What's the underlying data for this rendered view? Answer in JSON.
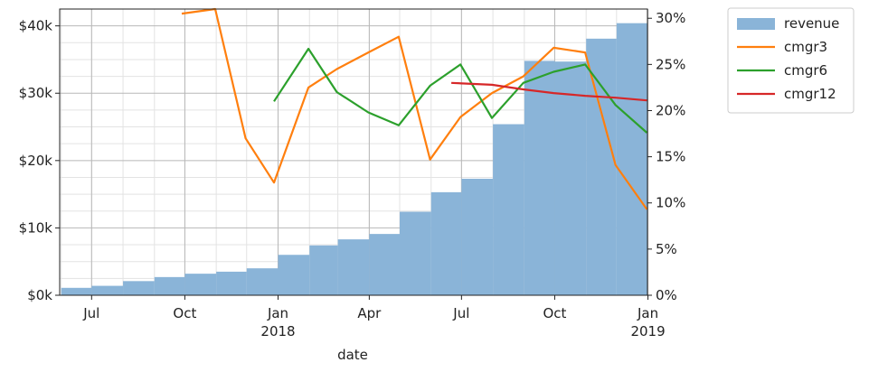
{
  "chart_data": {
    "type": "bar",
    "xlabel": "date",
    "x_ticks": [
      {
        "date": "2017-07-01",
        "label": "Jul",
        "sub": ""
      },
      {
        "date": "2017-10-01",
        "label": "Oct",
        "sub": ""
      },
      {
        "date": "2018-01-01",
        "label": "Jan",
        "sub": "2018"
      },
      {
        "date": "2018-04-01",
        "label": "Apr",
        "sub": ""
      },
      {
        "date": "2018-07-01",
        "label": "Jul",
        "sub": ""
      },
      {
        "date": "2018-10-01",
        "label": "Oct",
        "sub": ""
      },
      {
        "date": "2019-01-01",
        "label": "Jan",
        "sub": "2019"
      }
    ],
    "x_range": [
      "2017-05-31",
      "2018-12-31"
    ],
    "y_left": {
      "ticks": [
        "$0k",
        "$10k",
        "$20k",
        "$30k",
        "$40k"
      ],
      "values": [
        0,
        10000,
        20000,
        30000,
        40000
      ],
      "lim": [
        0,
        42500
      ]
    },
    "y_right": {
      "ticks": [
        "0%",
        "5%",
        "10%",
        "15%",
        "20%",
        "25%",
        "30%"
      ],
      "values": [
        0,
        5,
        10,
        15,
        20,
        25,
        30
      ],
      "lim": [
        0,
        31.0
      ]
    },
    "grid": true,
    "legend_position": "outside-top-right",
    "bars": {
      "name": "revenue",
      "color": "#8ab4d8",
      "months": [
        "2017-06",
        "2017-07",
        "2017-08",
        "2017-09",
        "2017-10",
        "2017-11",
        "2017-12",
        "2018-01",
        "2018-02",
        "2018-03",
        "2018-04",
        "2018-05",
        "2018-06",
        "2018-07",
        "2018-08",
        "2018-09",
        "2018-10",
        "2018-11",
        "2018-12"
      ],
      "values": [
        1100,
        1400,
        2100,
        2700,
        3200,
        3500,
        4000,
        6000,
        7400,
        8300,
        9100,
        12400,
        15300,
        17300,
        25400,
        34800,
        34700,
        38100,
        40400
      ]
    },
    "series": [
      {
        "name": "cmgr3",
        "color": "#ff7f0e",
        "points": [
          [
            "2017-09-28",
            30.5
          ],
          [
            "2017-10-31",
            31.0
          ],
          [
            "2017-11-30",
            17.0
          ],
          [
            "2017-12-28",
            12.2
          ],
          [
            "2018-01-31",
            22.5
          ],
          [
            "2018-02-28",
            24.5
          ],
          [
            "2018-03-31",
            26.3
          ],
          [
            "2018-04-30",
            28.0
          ],
          [
            "2018-05-31",
            14.7
          ],
          [
            "2018-06-30",
            19.3
          ],
          [
            "2018-07-31",
            21.9
          ],
          [
            "2018-08-31",
            23.7
          ],
          [
            "2018-09-30",
            26.8
          ],
          [
            "2018-10-31",
            26.3
          ],
          [
            "2018-11-30",
            14.1
          ],
          [
            "2018-12-31",
            9.3
          ]
        ]
      },
      {
        "name": "cmgr6",
        "color": "#2ca02c",
        "points": [
          [
            "2017-12-28",
            21.0
          ],
          [
            "2018-01-31",
            26.7
          ],
          [
            "2018-02-28",
            22.0
          ],
          [
            "2018-03-31",
            19.8
          ],
          [
            "2018-04-30",
            18.4
          ],
          [
            "2018-05-31",
            22.7
          ],
          [
            "2018-06-30",
            25.0
          ],
          [
            "2018-07-31",
            19.2
          ],
          [
            "2018-08-31",
            23.0
          ],
          [
            "2018-09-30",
            24.2
          ],
          [
            "2018-10-31",
            25.0
          ],
          [
            "2018-11-30",
            20.6
          ],
          [
            "2018-12-31",
            17.6
          ]
        ]
      },
      {
        "name": "cmgr12",
        "color": "#d62728",
        "points": [
          [
            "2018-06-21",
            23.0
          ],
          [
            "2018-07-31",
            22.8
          ],
          [
            "2018-08-31",
            22.3
          ],
          [
            "2018-09-30",
            21.9
          ],
          [
            "2018-10-31",
            21.6
          ],
          [
            "2018-11-30",
            21.4
          ],
          [
            "2018-12-31",
            21.1
          ]
        ]
      }
    ]
  }
}
